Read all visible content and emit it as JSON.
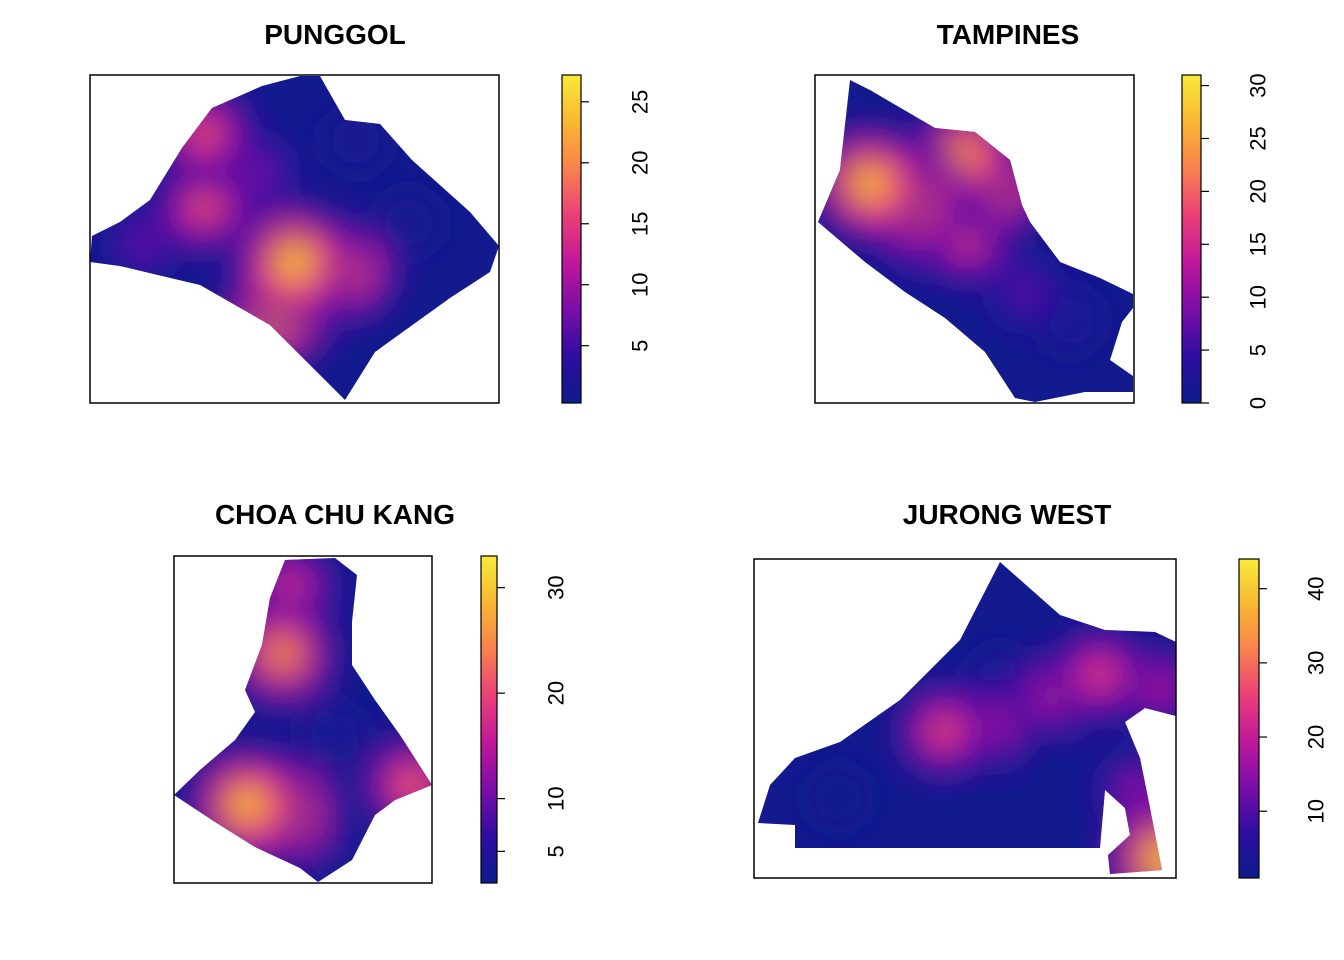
{
  "chart_data": [
    {
      "type": "heatmap",
      "title": "PUNGGOL",
      "legend_ticks": [
        5,
        10,
        15,
        20,
        25
      ],
      "legend_range": [
        0.3,
        27.2
      ],
      "colormap": [
        "#0D1C8B",
        "#2E0DA1",
        "#7A0DA8",
        "#C0179A",
        "#EB3F78",
        "#F9814E",
        "#F9B733",
        "#F8EA3A"
      ],
      "hotspots": [
        {
          "x": 0.5,
          "y": 0.57,
          "value": 27
        },
        {
          "x": 0.46,
          "y": 0.72,
          "value": 25
        },
        {
          "x": 0.63,
          "y": 0.6,
          "value": 20
        },
        {
          "x": 0.28,
          "y": 0.4,
          "value": 18
        },
        {
          "x": 0.28,
          "y": 0.18,
          "value": 18
        },
        {
          "x": 0.13,
          "y": 0.51,
          "value": 8
        },
        {
          "x": 0.4,
          "y": 0.3,
          "value": 10
        },
        {
          "x": 0.78,
          "y": 0.45,
          "value": 1
        },
        {
          "x": 0.65,
          "y": 0.2,
          "value": 1
        }
      ]
    },
    {
      "type": "heatmap",
      "title": "TAMPINES",
      "legend_ticks": [
        0,
        5,
        10,
        15,
        20,
        25,
        30
      ],
      "legend_range": [
        0,
        31
      ],
      "colormap": [
        "#0D1C8B",
        "#2E0DA1",
        "#7A0DA8",
        "#C0179A",
        "#EB3F78",
        "#F9814E",
        "#F9B733",
        "#F8EA3A"
      ],
      "hotspots": [
        {
          "x": 0.17,
          "y": 0.33,
          "value": 30
        },
        {
          "x": 0.29,
          "y": 0.38,
          "value": 28
        },
        {
          "x": 0.47,
          "y": 0.24,
          "value": 26
        },
        {
          "x": 0.58,
          "y": 0.33,
          "value": 24
        },
        {
          "x": 0.48,
          "y": 0.5,
          "value": 18
        },
        {
          "x": 0.35,
          "y": 0.48,
          "value": 16
        },
        {
          "x": 0.66,
          "y": 0.66,
          "value": 8
        },
        {
          "x": 0.8,
          "y": 0.75,
          "value": 2
        }
      ]
    },
    {
      "type": "heatmap",
      "title": "CHOA CHU KANG",
      "legend_ticks": [
        5,
        10,
        20,
        30
      ],
      "legend_range": [
        2,
        33
      ],
      "colormap": [
        "#0D1C8B",
        "#2E0DA1",
        "#7A0DA8",
        "#C0179A",
        "#EB3F78",
        "#F9814E",
        "#F9B733",
        "#F8EA3A"
      ],
      "hotspots": [
        {
          "x": 0.28,
          "y": 0.76,
          "value": 32
        },
        {
          "x": 0.43,
          "y": 0.78,
          "value": 30
        },
        {
          "x": 0.42,
          "y": 0.3,
          "value": 28
        },
        {
          "x": 0.45,
          "y": 0.1,
          "value": 20
        },
        {
          "x": 0.62,
          "y": 0.55,
          "value": 4
        },
        {
          "x": 0.92,
          "y": 0.7,
          "value": 24
        },
        {
          "x": 0.6,
          "y": 0.92,
          "value": 4
        }
      ]
    },
    {
      "type": "heatmap",
      "title": "JURONG WEST",
      "legend_ticks": [
        10,
        20,
        30,
        40
      ],
      "legend_range": [
        1,
        44
      ],
      "colormap": [
        "#0D1C8B",
        "#2E0DA1",
        "#7A0DA8",
        "#C0179A",
        "#EB3F78",
        "#F9814E",
        "#F9B733",
        "#F8EA3A"
      ],
      "hotspots": [
        {
          "x": 0.45,
          "y": 0.54,
          "value": 28
        },
        {
          "x": 0.57,
          "y": 0.52,
          "value": 22
        },
        {
          "x": 0.72,
          "y": 0.42,
          "value": 24
        },
        {
          "x": 0.82,
          "y": 0.36,
          "value": 27
        },
        {
          "x": 0.95,
          "y": 0.4,
          "value": 22
        },
        {
          "x": 0.91,
          "y": 0.73,
          "value": 18
        },
        {
          "x": 0.97,
          "y": 0.94,
          "value": 44
        },
        {
          "x": 0.58,
          "y": 0.38,
          "value": 3
        },
        {
          "x": 0.2,
          "y": 0.75,
          "value": 1
        }
      ]
    }
  ]
}
